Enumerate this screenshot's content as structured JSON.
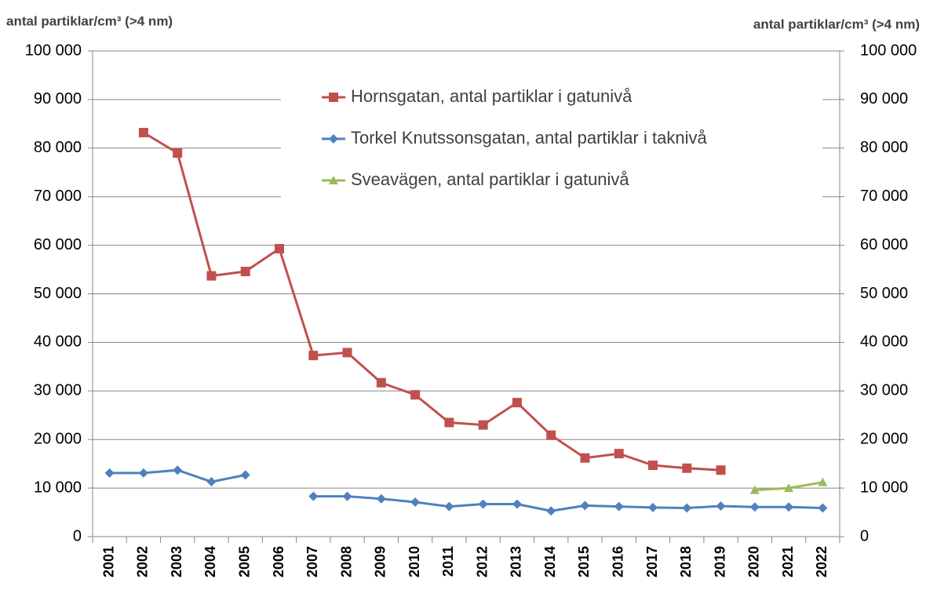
{
  "chart_data": {
    "type": "line",
    "y_label": "antal partiklar/cm³ (>4 nm)",
    "y2_label": "antal partiklar/cm³ (>4 nm)",
    "categories": [
      "2001",
      "2002",
      "2003",
      "2004",
      "2005",
      "2006",
      "2007",
      "2008",
      "2009",
      "2010",
      "2011",
      "2012",
      "2013",
      "2014",
      "2015",
      "2016",
      "2017",
      "2018",
      "2019",
      "2020",
      "2021",
      "2022"
    ],
    "series": [
      {
        "name": "Hornsgatan, antal partiklar i gatunivå",
        "color": "#c0504d",
        "marker": "square",
        "values": [
          null,
          83200,
          79000,
          53700,
          54600,
          59300,
          37300,
          37900,
          31700,
          29200,
          23500,
          23000,
          27600,
          20900,
          16200,
          17100,
          14700,
          14100,
          13700,
          null,
          null,
          null
        ]
      },
      {
        "name": "Torkel Knutssonsgatan, antal partiklar i taknivå",
        "color": "#4f81bd",
        "marker": "diamond",
        "values": [
          13100,
          13100,
          13700,
          11300,
          12700,
          null,
          8300,
          8300,
          7800,
          7100,
          6200,
          6700,
          6700,
          5300,
          6400,
          6200,
          6000,
          5900,
          6300,
          6100,
          6100,
          5900
        ]
      },
      {
        "name": "Sveavägen, antal partiklar i gatunivå",
        "color": "#9bbb59",
        "marker": "triangle",
        "values": [
          null,
          null,
          null,
          null,
          null,
          null,
          null,
          null,
          null,
          null,
          null,
          null,
          null,
          null,
          null,
          null,
          null,
          null,
          null,
          9600,
          10000,
          11200
        ]
      }
    ],
    "ylim": [
      0,
      100000
    ],
    "yticks": [
      0,
      {
        "value": 10000,
        "label": "10 000"
      },
      {
        "value": 20000,
        "label": "20 000"
      },
      {
        "value": 30000,
        "label": "30 000"
      },
      {
        "value": 40000,
        "label": "40 000"
      },
      {
        "value": 50000,
        "label": "50 000"
      },
      {
        "value": 60000,
        "label": "60 000"
      },
      {
        "value": 70000,
        "label": "70 000"
      },
      {
        "value": 80000,
        "label": "80 000"
      },
      {
        "value": 90000,
        "label": "90 000"
      },
      {
        "value": 100000,
        "label": "100 000"
      }
    ],
    "y2lim": [
      0,
      100000
    ],
    "y2ticks": [
      0,
      {
        "value": 10000,
        "label": "10 000"
      },
      {
        "value": 20000,
        "label": "20 000"
      },
      {
        "value": 30000,
        "label": "30 000"
      },
      {
        "value": 40000,
        "label": "40 000"
      },
      {
        "value": 50000,
        "label": "50 000"
      },
      {
        "value": 60000,
        "label": "60 000"
      },
      {
        "value": 70000,
        "label": "70 000"
      },
      {
        "value": 80000,
        "label": "80 000"
      },
      {
        "value": 90000,
        "label": "90 000"
      },
      {
        "value": 100000,
        "label": "100 000"
      }
    ],
    "grid": true
  }
}
